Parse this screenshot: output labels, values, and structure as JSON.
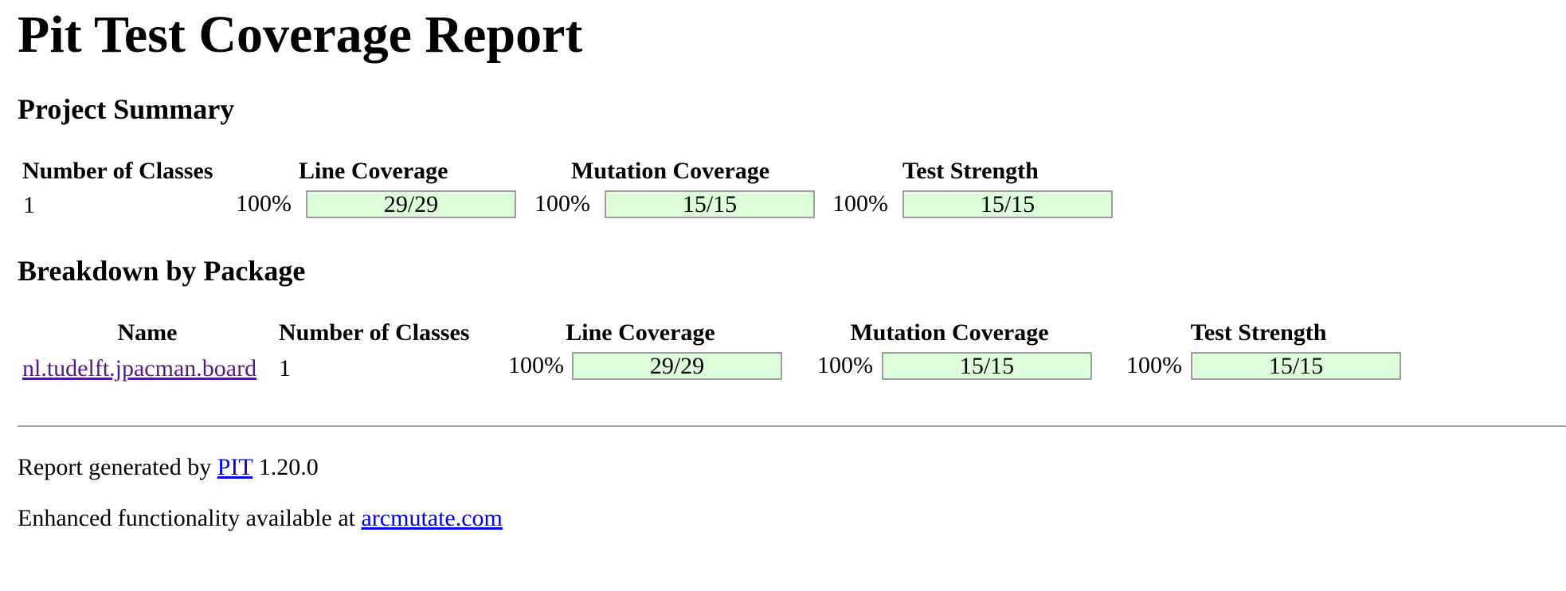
{
  "report": {
    "title": "Pit Test Coverage Report"
  },
  "project_summary": {
    "heading": "Project Summary",
    "columns": [
      "Number of Classes",
      "Line Coverage",
      "Mutation Coverage",
      "Test Strength"
    ],
    "row": {
      "classes": "1",
      "line_percent": "100%",
      "line_ratio": "29/29",
      "line_fill": 1.0,
      "mutation_percent": "100%",
      "mutation_ratio": "15/15",
      "mutation_fill": 1.0,
      "strength_percent": "100%",
      "strength_ratio": "15/15",
      "strength_fill": 1.0
    }
  },
  "breakdown": {
    "heading": "Breakdown by Package",
    "columns": [
      "Name",
      "Number of Classes",
      "Line Coverage",
      "Mutation Coverage",
      "Test Strength"
    ],
    "rows": [
      {
        "name": "nl.tudelft.jpacman.board",
        "classes": "1",
        "line_percent": "100%",
        "line_ratio": "29/29",
        "line_fill": 1.0,
        "mutation_percent": "100%",
        "mutation_ratio": "15/15",
        "mutation_fill": 1.0,
        "strength_percent": "100%",
        "strength_ratio": "15/15",
        "strength_fill": 1.0
      }
    ]
  },
  "footer": {
    "generated_prefix": "Report generated by",
    "pit_link": "PIT",
    "version": "1.20.0",
    "enhanced_prefix": "Enhanced functionality available at",
    "arcmutate_link": "arcmutate.com"
  },
  "colors": {
    "bar_background": "#e3fce1",
    "bar_border": "#9e9e9e",
    "link": "#0000ee",
    "visited_link": "#551a8b"
  }
}
